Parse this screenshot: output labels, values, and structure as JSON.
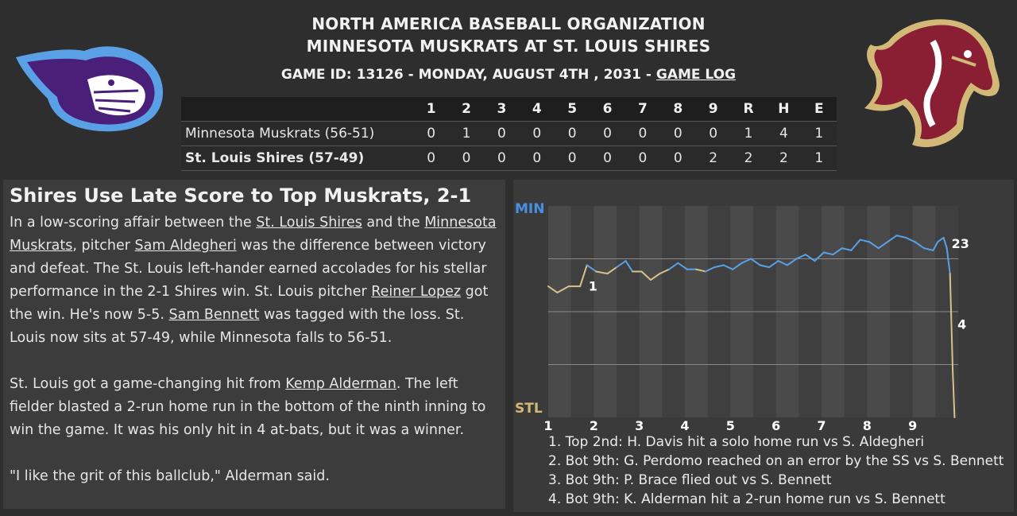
{
  "header": {
    "league": "NORTH AMERICA BASEBALL ORGANIZATION",
    "matchup": "MINNESOTA MUSKRATS AT ST. LOUIS SHIRES",
    "game_info": "GAME ID: 13126 - MONDAY, AUGUST 4TH , 2031 - ",
    "game_log_link": "GAME LOG"
  },
  "logos": {
    "away": "muskrat-logo",
    "home": "horse-logo"
  },
  "boxscore": {
    "columns": [
      "1",
      "2",
      "3",
      "4",
      "5",
      "6",
      "7",
      "8",
      "9",
      "R",
      "H",
      "E"
    ],
    "away": {
      "team": "Minnesota Muskrats (56-51)",
      "cells": [
        "0",
        "1",
        "0",
        "0",
        "0",
        "0",
        "0",
        "0",
        "0",
        "1",
        "4",
        "1"
      ]
    },
    "home": {
      "team": "St. Louis Shires (57-49)",
      "cells": [
        "0",
        "0",
        "0",
        "0",
        "0",
        "0",
        "0",
        "0",
        "2",
        "2",
        "2",
        "1"
      ]
    }
  },
  "story": {
    "headline": "Shires Use Late Score to Top Muskrats, 2-1",
    "p1": {
      "t1": "In a low-scoring affair between the ",
      "l1": "St. Louis Shires",
      "t2": " and the ",
      "l2": "Minnesota Muskrats",
      "t3": ", pitcher ",
      "l3": "Sam Aldegheri",
      "t4": " was the difference between victory and defeat. The St. Louis left-hander earned accolades for his stellar performance in the 2-1 Shires win. St. Louis pitcher ",
      "l4": "Reiner Lopez",
      "t5": " got the win. He's now 5-5. ",
      "l5": "Sam Bennett",
      "t6": " was tagged with the loss. St. Louis now sits at 57-49, while Minnesota falls to 56-51."
    },
    "p2": {
      "t1": "St. Louis got a game-changing hit from ",
      "l1": "Kemp Alderman",
      "t2": ". The left fielder blasted a 2-run home run in the bottom of the ninth inning to win the game. It was his only hit in 4 at-bats, but it was a winner."
    },
    "p3": "\"I like the grit of this ballclub,\" Alderman said."
  },
  "chart_data": {
    "type": "line",
    "top_label": "MIN",
    "bottom_label": "STL",
    "x_ticks": [
      "1",
      "2",
      "3",
      "4",
      "5",
      "6",
      "7",
      "8",
      "9"
    ],
    "ylim": [
      0,
      1
    ],
    "colors": {
      "away": "#5aa0e6",
      "home": "#d8c08a",
      "top_label": "#4a90e2",
      "bottom_label": "#d2b978"
    },
    "series": [
      {
        "values": [
          [
            1.0,
            0.62
          ],
          [
            1.2,
            0.59
          ],
          [
            1.45,
            0.62
          ],
          [
            1.7,
            0.62
          ],
          [
            1.85,
            0.72
          ],
          [
            2.05,
            0.69
          ],
          [
            2.3,
            0.68
          ],
          [
            2.5,
            0.71
          ],
          [
            2.7,
            0.74
          ],
          [
            2.85,
            0.69
          ],
          [
            3.05,
            0.69
          ],
          [
            3.25,
            0.65
          ],
          [
            3.45,
            0.68
          ],
          [
            3.65,
            0.7
          ],
          [
            3.85,
            0.73
          ],
          [
            4.05,
            0.7
          ],
          [
            4.25,
            0.7
          ],
          [
            4.45,
            0.69
          ],
          [
            4.65,
            0.71
          ],
          [
            4.85,
            0.72
          ],
          [
            5.05,
            0.7
          ],
          [
            5.25,
            0.73
          ],
          [
            5.45,
            0.75
          ],
          [
            5.65,
            0.72
          ],
          [
            5.85,
            0.71
          ],
          [
            6.05,
            0.74
          ],
          [
            6.25,
            0.72
          ],
          [
            6.45,
            0.75
          ],
          [
            6.65,
            0.77
          ],
          [
            6.85,
            0.74
          ],
          [
            7.05,
            0.78
          ],
          [
            7.25,
            0.77
          ],
          [
            7.45,
            0.8
          ],
          [
            7.65,
            0.79
          ],
          [
            7.85,
            0.84
          ],
          [
            8.05,
            0.83
          ],
          [
            8.25,
            0.8
          ],
          [
            8.45,
            0.83
          ],
          [
            8.65,
            0.86
          ],
          [
            8.85,
            0.85
          ],
          [
            9.05,
            0.83
          ],
          [
            9.25,
            0.8
          ],
          [
            9.45,
            0.79
          ],
          [
            9.55,
            0.83
          ],
          [
            9.68,
            0.85
          ],
          [
            9.75,
            0.8
          ],
          [
            9.82,
            0.68
          ],
          [
            9.88,
            0.22
          ],
          [
            9.92,
            0.0
          ]
        ]
      }
    ],
    "markers": [
      {
        "label": "1",
        "x": 1.85,
        "y": 0.6
      },
      {
        "label": "23",
        "x": 9.82,
        "y": 0.8
      },
      {
        "label": "4",
        "x": 9.95,
        "y": 0.42
      }
    ]
  },
  "legend": [
    "1. Top 2nd: H. Davis hit a solo home run vs S. Aldegheri",
    "2. Bot 9th: G. Perdomo reached on an error by the SS vs S. Bennett",
    "3. Bot 9th: P. Brace flied out vs S. Bennett",
    "4. Bot 9th: K. Alderman hit a 2-run home run vs S. Bennett"
  ]
}
